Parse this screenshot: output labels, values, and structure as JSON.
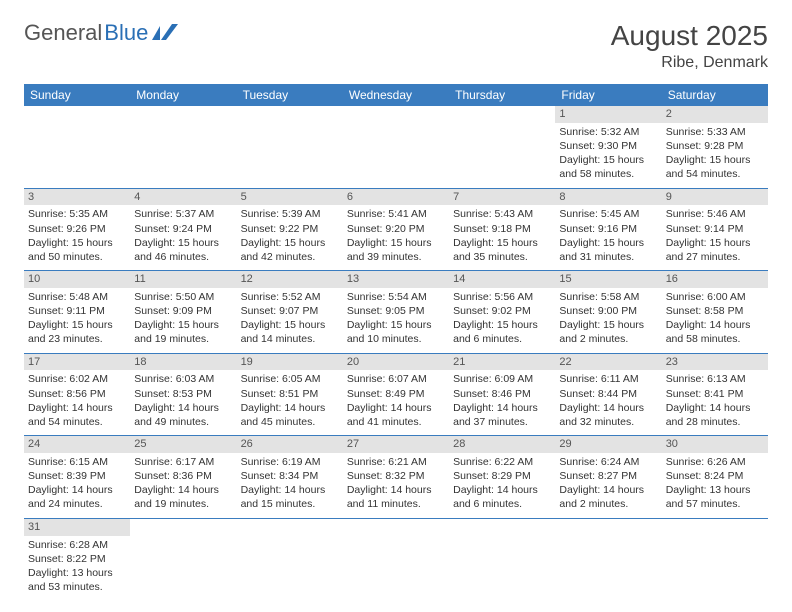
{
  "logo": {
    "text1": "General",
    "text2": "Blue"
  },
  "title": "August 2025",
  "location": "Ribe, Denmark",
  "colors": {
    "header_bg": "#3a7cbf",
    "header_text": "#ffffff",
    "daynum_bg": "#e3e3e3",
    "border": "#3a7cbf",
    "logo_blue": "#2a6fb5"
  },
  "dayHeaders": [
    "Sunday",
    "Monday",
    "Tuesday",
    "Wednesday",
    "Thursday",
    "Friday",
    "Saturday"
  ],
  "weeks": [
    [
      null,
      null,
      null,
      null,
      null,
      {
        "n": "1",
        "sr": "Sunrise: 5:32 AM",
        "ss": "Sunset: 9:30 PM",
        "dl1": "Daylight: 15 hours",
        "dl2": "and 58 minutes."
      },
      {
        "n": "2",
        "sr": "Sunrise: 5:33 AM",
        "ss": "Sunset: 9:28 PM",
        "dl1": "Daylight: 15 hours",
        "dl2": "and 54 minutes."
      }
    ],
    [
      {
        "n": "3",
        "sr": "Sunrise: 5:35 AM",
        "ss": "Sunset: 9:26 PM",
        "dl1": "Daylight: 15 hours",
        "dl2": "and 50 minutes."
      },
      {
        "n": "4",
        "sr": "Sunrise: 5:37 AM",
        "ss": "Sunset: 9:24 PM",
        "dl1": "Daylight: 15 hours",
        "dl2": "and 46 minutes."
      },
      {
        "n": "5",
        "sr": "Sunrise: 5:39 AM",
        "ss": "Sunset: 9:22 PM",
        "dl1": "Daylight: 15 hours",
        "dl2": "and 42 minutes."
      },
      {
        "n": "6",
        "sr": "Sunrise: 5:41 AM",
        "ss": "Sunset: 9:20 PM",
        "dl1": "Daylight: 15 hours",
        "dl2": "and 39 minutes."
      },
      {
        "n": "7",
        "sr": "Sunrise: 5:43 AM",
        "ss": "Sunset: 9:18 PM",
        "dl1": "Daylight: 15 hours",
        "dl2": "and 35 minutes."
      },
      {
        "n": "8",
        "sr": "Sunrise: 5:45 AM",
        "ss": "Sunset: 9:16 PM",
        "dl1": "Daylight: 15 hours",
        "dl2": "and 31 minutes."
      },
      {
        "n": "9",
        "sr": "Sunrise: 5:46 AM",
        "ss": "Sunset: 9:14 PM",
        "dl1": "Daylight: 15 hours",
        "dl2": "and 27 minutes."
      }
    ],
    [
      {
        "n": "10",
        "sr": "Sunrise: 5:48 AM",
        "ss": "Sunset: 9:11 PM",
        "dl1": "Daylight: 15 hours",
        "dl2": "and 23 minutes."
      },
      {
        "n": "11",
        "sr": "Sunrise: 5:50 AM",
        "ss": "Sunset: 9:09 PM",
        "dl1": "Daylight: 15 hours",
        "dl2": "and 19 minutes."
      },
      {
        "n": "12",
        "sr": "Sunrise: 5:52 AM",
        "ss": "Sunset: 9:07 PM",
        "dl1": "Daylight: 15 hours",
        "dl2": "and 14 minutes."
      },
      {
        "n": "13",
        "sr": "Sunrise: 5:54 AM",
        "ss": "Sunset: 9:05 PM",
        "dl1": "Daylight: 15 hours",
        "dl2": "and 10 minutes."
      },
      {
        "n": "14",
        "sr": "Sunrise: 5:56 AM",
        "ss": "Sunset: 9:02 PM",
        "dl1": "Daylight: 15 hours",
        "dl2": "and 6 minutes."
      },
      {
        "n": "15",
        "sr": "Sunrise: 5:58 AM",
        "ss": "Sunset: 9:00 PM",
        "dl1": "Daylight: 15 hours",
        "dl2": "and 2 minutes."
      },
      {
        "n": "16",
        "sr": "Sunrise: 6:00 AM",
        "ss": "Sunset: 8:58 PM",
        "dl1": "Daylight: 14 hours",
        "dl2": "and 58 minutes."
      }
    ],
    [
      {
        "n": "17",
        "sr": "Sunrise: 6:02 AM",
        "ss": "Sunset: 8:56 PM",
        "dl1": "Daylight: 14 hours",
        "dl2": "and 54 minutes."
      },
      {
        "n": "18",
        "sr": "Sunrise: 6:03 AM",
        "ss": "Sunset: 8:53 PM",
        "dl1": "Daylight: 14 hours",
        "dl2": "and 49 minutes."
      },
      {
        "n": "19",
        "sr": "Sunrise: 6:05 AM",
        "ss": "Sunset: 8:51 PM",
        "dl1": "Daylight: 14 hours",
        "dl2": "and 45 minutes."
      },
      {
        "n": "20",
        "sr": "Sunrise: 6:07 AM",
        "ss": "Sunset: 8:49 PM",
        "dl1": "Daylight: 14 hours",
        "dl2": "and 41 minutes."
      },
      {
        "n": "21",
        "sr": "Sunrise: 6:09 AM",
        "ss": "Sunset: 8:46 PM",
        "dl1": "Daylight: 14 hours",
        "dl2": "and 37 minutes."
      },
      {
        "n": "22",
        "sr": "Sunrise: 6:11 AM",
        "ss": "Sunset: 8:44 PM",
        "dl1": "Daylight: 14 hours",
        "dl2": "and 32 minutes."
      },
      {
        "n": "23",
        "sr": "Sunrise: 6:13 AM",
        "ss": "Sunset: 8:41 PM",
        "dl1": "Daylight: 14 hours",
        "dl2": "and 28 minutes."
      }
    ],
    [
      {
        "n": "24",
        "sr": "Sunrise: 6:15 AM",
        "ss": "Sunset: 8:39 PM",
        "dl1": "Daylight: 14 hours",
        "dl2": "and 24 minutes."
      },
      {
        "n": "25",
        "sr": "Sunrise: 6:17 AM",
        "ss": "Sunset: 8:36 PM",
        "dl1": "Daylight: 14 hours",
        "dl2": "and 19 minutes."
      },
      {
        "n": "26",
        "sr": "Sunrise: 6:19 AM",
        "ss": "Sunset: 8:34 PM",
        "dl1": "Daylight: 14 hours",
        "dl2": "and 15 minutes."
      },
      {
        "n": "27",
        "sr": "Sunrise: 6:21 AM",
        "ss": "Sunset: 8:32 PM",
        "dl1": "Daylight: 14 hours",
        "dl2": "and 11 minutes."
      },
      {
        "n": "28",
        "sr": "Sunrise: 6:22 AM",
        "ss": "Sunset: 8:29 PM",
        "dl1": "Daylight: 14 hours",
        "dl2": "and 6 minutes."
      },
      {
        "n": "29",
        "sr": "Sunrise: 6:24 AM",
        "ss": "Sunset: 8:27 PM",
        "dl1": "Daylight: 14 hours",
        "dl2": "and 2 minutes."
      },
      {
        "n": "30",
        "sr": "Sunrise: 6:26 AM",
        "ss": "Sunset: 8:24 PM",
        "dl1": "Daylight: 13 hours",
        "dl2": "and 57 minutes."
      }
    ],
    [
      {
        "n": "31",
        "sr": "Sunrise: 6:28 AM",
        "ss": "Sunset: 8:22 PM",
        "dl1": "Daylight: 13 hours",
        "dl2": "and 53 minutes."
      },
      null,
      null,
      null,
      null,
      null,
      null
    ]
  ]
}
